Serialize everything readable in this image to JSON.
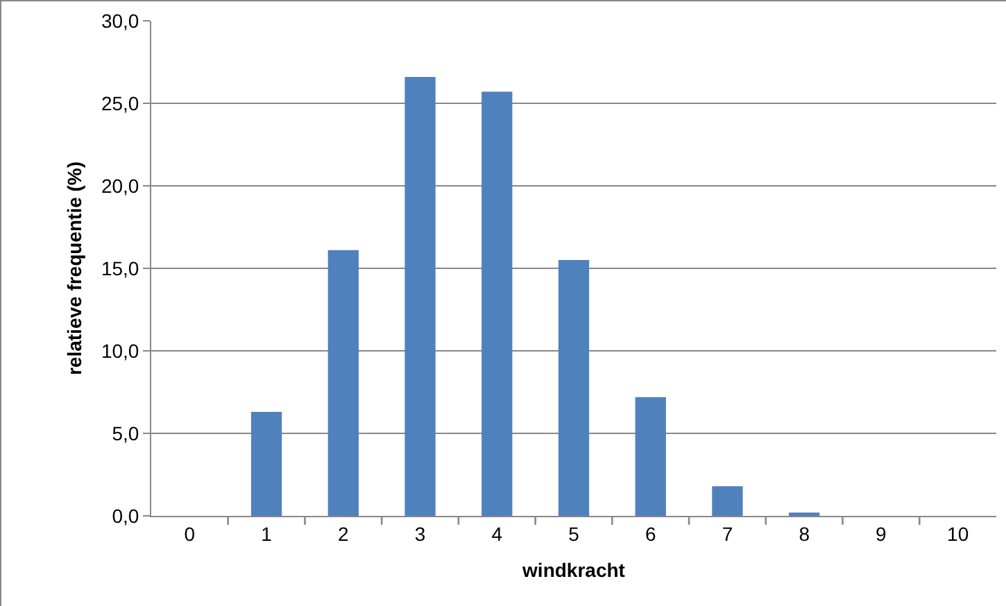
{
  "chart_data": {
    "type": "bar",
    "xlabel": "windkracht",
    "ylabel": "relatieve frequentie (%)",
    "categories": [
      "0",
      "1",
      "2",
      "3",
      "4",
      "5",
      "6",
      "7",
      "8",
      "9",
      "10"
    ],
    "values": [
      0,
      6.3,
      16.1,
      26.6,
      25.7,
      15.5,
      7.2,
      1.8,
      0.2,
      0,
      0
    ],
    "color": "#4f81bd",
    "ylim": [
      0,
      30
    ],
    "yticks": [
      {
        "value": 0,
        "label": "0,0"
      },
      {
        "value": 5,
        "label": "5,0"
      },
      {
        "value": 10,
        "label": "10,0"
      },
      {
        "value": 15,
        "label": "15,0"
      },
      {
        "value": 20,
        "label": "20,0"
      },
      {
        "value": 25,
        "label": "25,0"
      },
      {
        "value": 30,
        "label": "30,0"
      }
    ],
    "grid": "y",
    "legend": false
  }
}
